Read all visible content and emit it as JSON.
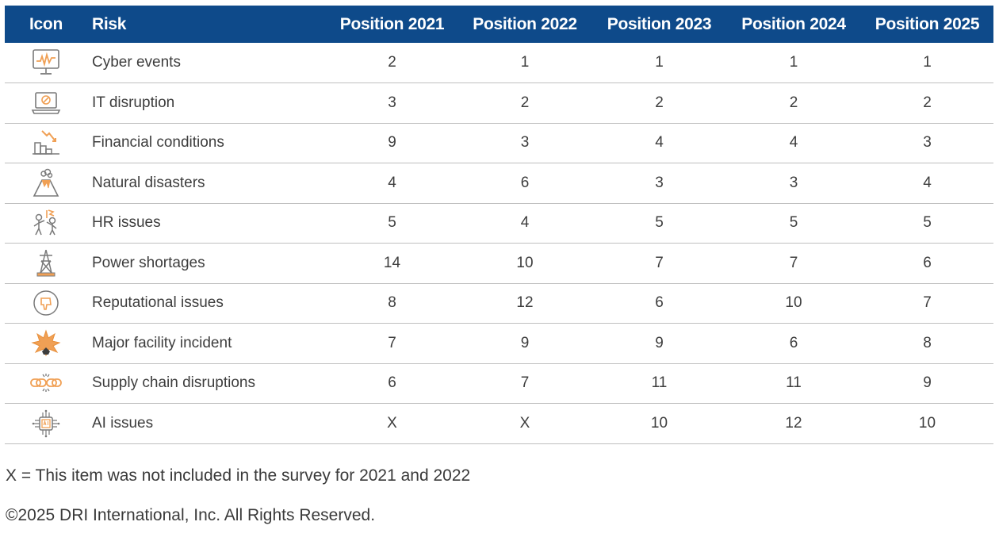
{
  "table": {
    "headers": {
      "icon": "Icon",
      "risk": "Risk",
      "years": [
        "Position 2021",
        "Position 2022",
        "Position 2023",
        "Position 2024",
        "Position 2025"
      ]
    },
    "rows": [
      {
        "icon": "cyber-monitor-icon",
        "risk": "Cyber events",
        "positions": [
          "2",
          "1",
          "1",
          "1",
          "1"
        ]
      },
      {
        "icon": "laptop-wrench-icon",
        "risk": "IT disruption",
        "positions": [
          "3",
          "2",
          "2",
          "2",
          "2"
        ]
      },
      {
        "icon": "financial-decline-icon",
        "risk": "Financial conditions",
        "positions": [
          "9",
          "3",
          "4",
          "4",
          "3"
        ]
      },
      {
        "icon": "volcano-icon",
        "risk": "Natural disasters",
        "positions": [
          "4",
          "6",
          "3",
          "3",
          "4"
        ]
      },
      {
        "icon": "people-conflict-icon",
        "risk": "HR issues",
        "positions": [
          "5",
          "4",
          "5",
          "5",
          "5"
        ]
      },
      {
        "icon": "power-tower-icon",
        "risk": "Power shortages",
        "positions": [
          "14",
          "10",
          "7",
          "7",
          "6"
        ]
      },
      {
        "icon": "thumbs-down-icon",
        "risk": "Reputational issues",
        "positions": [
          "8",
          "12",
          "6",
          "10",
          "7"
        ]
      },
      {
        "icon": "explosion-icon",
        "risk": "Major facility incident",
        "positions": [
          "7",
          "9",
          "9",
          "6",
          "8"
        ]
      },
      {
        "icon": "broken-chain-icon",
        "risk": "Supply chain disruptions",
        "positions": [
          "6",
          "7",
          "11",
          "11",
          "9"
        ]
      },
      {
        "icon": "ai-chip-icon",
        "risk": "AI issues",
        "positions": [
          "X",
          "X",
          "10",
          "12",
          "10"
        ]
      }
    ]
  },
  "footnote": "X = This item was not included in the survey for 2021 and 2022",
  "copyright": "©2025 DRI International, Inc. All Rights Reserved.",
  "colors": {
    "header_bg": "#0e4a8a",
    "icon_accent": "#f0a055",
    "icon_line": "#7a7a7a"
  }
}
